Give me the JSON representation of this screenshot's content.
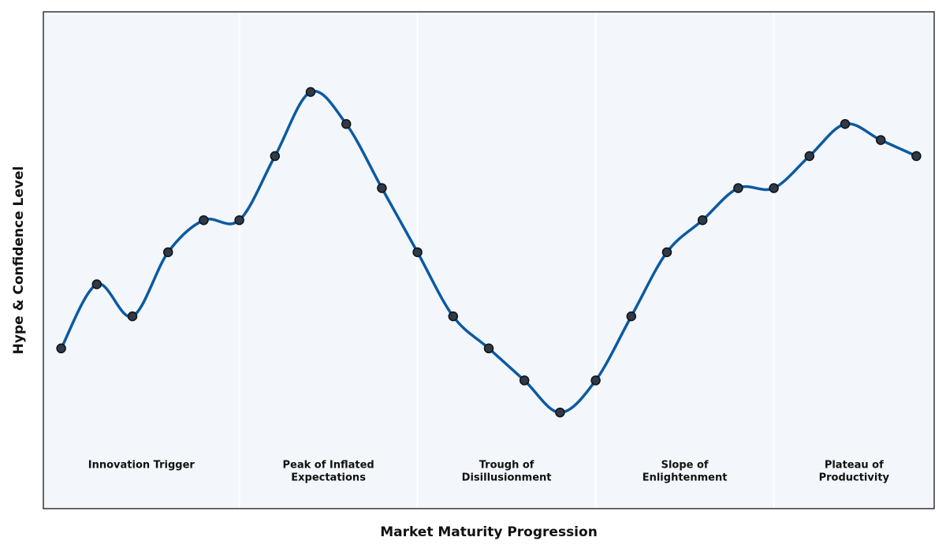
{
  "chart_data": {
    "type": "line",
    "x_label": "Market Maturity Progression",
    "y_label": "Hype & Confidence Level",
    "x": [
      0,
      1,
      2,
      3,
      4,
      5,
      6,
      7,
      8,
      9,
      10,
      11,
      12,
      13,
      14,
      15,
      16,
      17,
      18,
      19,
      20,
      21,
      22,
      23,
      24
    ],
    "values": [
      2,
      4,
      3,
      5,
      6,
      6,
      8,
      10,
      9,
      7,
      5,
      3,
      2,
      1,
      0,
      1,
      3,
      5,
      6,
      7,
      7,
      8,
      9,
      8.5,
      8
    ],
    "color": "#0b5aa2",
    "marker_color": "#2e3a48",
    "xlim": [
      -0.5,
      24.5
    ],
    "ylim": [
      -3,
      12.5
    ],
    "phase_boundaries": [
      5,
      10,
      15,
      20
    ],
    "phases": [
      [
        "Innovation Trigger"
      ],
      [
        "Peak of Inflated",
        "Expectations"
      ],
      [
        "Trough of",
        "Disillusionment"
      ],
      [
        "Slope of",
        "Enlightenment"
      ],
      [
        "Plateau of",
        "Productivity"
      ]
    ]
  }
}
